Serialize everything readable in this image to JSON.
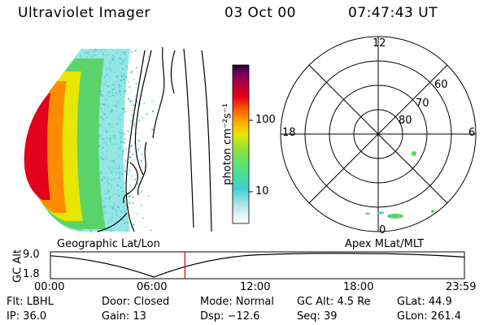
{
  "header": {
    "title": "Ultraviolet Imager",
    "date": "03 Oct 00",
    "time": "07:47:43 UT"
  },
  "colorbar": {
    "label": "photon cm⁻²s⁻¹",
    "ticks": [
      "100",
      "10"
    ]
  },
  "polar_plot": {
    "mlt_labels": [
      "12",
      "18",
      "6",
      "0"
    ],
    "lat_labels": [
      "60",
      "70",
      "80"
    ]
  },
  "timeline": {
    "left_title": "Geographic Lat/Lon",
    "right_title": "Apex MLat/MLT",
    "axis_label": "GC Alt",
    "y_ticks": [
      "9.0",
      "1.8"
    ],
    "x_ticks": [
      "00:00",
      "06:00",
      "12:00",
      "18:00",
      "23:59"
    ],
    "marker_color": "#e00000"
  },
  "chart_data": {
    "type": "line",
    "title": "",
    "xlabel": "",
    "ylabel": "GC Alt",
    "x": [
      "00:00",
      "06:00",
      "12:00",
      "18:00",
      "23:59"
    ],
    "ylim": [
      1.8,
      9.0
    ],
    "series": [
      {
        "values": [
          8.3,
          1.8,
          8.6,
          9.0,
          7.9
        ]
      }
    ],
    "current_time": "07:47:43"
  },
  "info": {
    "row1": {
      "flt": "Flt: LBHL",
      "door": "Door: Closed",
      "mode": "Mode: Normal",
      "gcalt": "GC Alt: 4.5 Re",
      "glat": "GLat:  44.9"
    },
    "row2": {
      "ip": "IP: 36.0",
      "gain": "Gain: 13",
      "dsp": "Dsp:   −12.6",
      "seq": "Seq: 39",
      "glon": "GLon: 261.4"
    }
  }
}
